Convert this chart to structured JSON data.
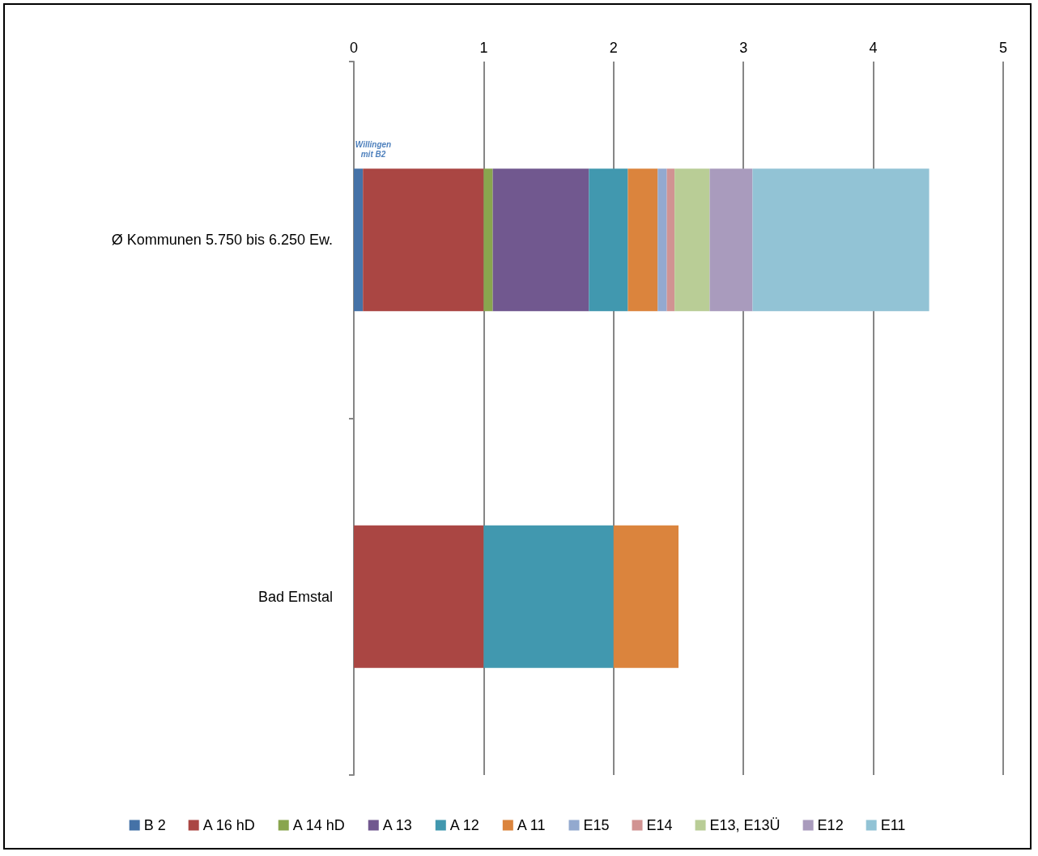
{
  "chart_data": {
    "type": "bar",
    "orientation": "horizontal",
    "stacked": true,
    "categories": [
      "Ø Kommunen 5.750 bis 6.250 Ew.",
      "Bad Emstal"
    ],
    "series": [
      {
        "name": "B 2",
        "color": "#4572a7",
        "values": [
          0.07,
          null
        ]
      },
      {
        "name": "A 16 hD",
        "color": "#aa4643",
        "values": [
          0.93,
          1
        ]
      },
      {
        "name": "A 14 hD",
        "color": "#89a54e",
        "values": [
          0.07,
          null
        ]
      },
      {
        "name": "A 13",
        "color": "#71588f",
        "values": [
          0.74,
          null
        ]
      },
      {
        "name": "A 12",
        "color": "#4198af",
        "values": [
          0.3,
          1
        ]
      },
      {
        "name": "A 11",
        "color": "#db843d",
        "values": [
          0.23,
          0.5
        ]
      },
      {
        "name": "E15",
        "color": "#93a9cf",
        "values": [
          0.07,
          null
        ]
      },
      {
        "name": "E14",
        "color": "#d19392",
        "values": [
          0.06,
          null
        ]
      },
      {
        "name": "E13, E13Ü",
        "color": "#b9cd96",
        "values": [
          0.27,
          null
        ]
      },
      {
        "name": "E12",
        "color": "#a99bbd",
        "values": [
          0.33,
          null
        ]
      },
      {
        "name": "E11",
        "color": "#92c3d5",
        "values": [
          1.36,
          null
        ]
      }
    ],
    "xlim": [
      0,
      5
    ],
    "xticks": [
      0,
      1,
      2,
      3,
      4,
      5
    ],
    "grid": "x",
    "legend": "bottom",
    "annotations": [
      "Willingen mit B2"
    ]
  }
}
